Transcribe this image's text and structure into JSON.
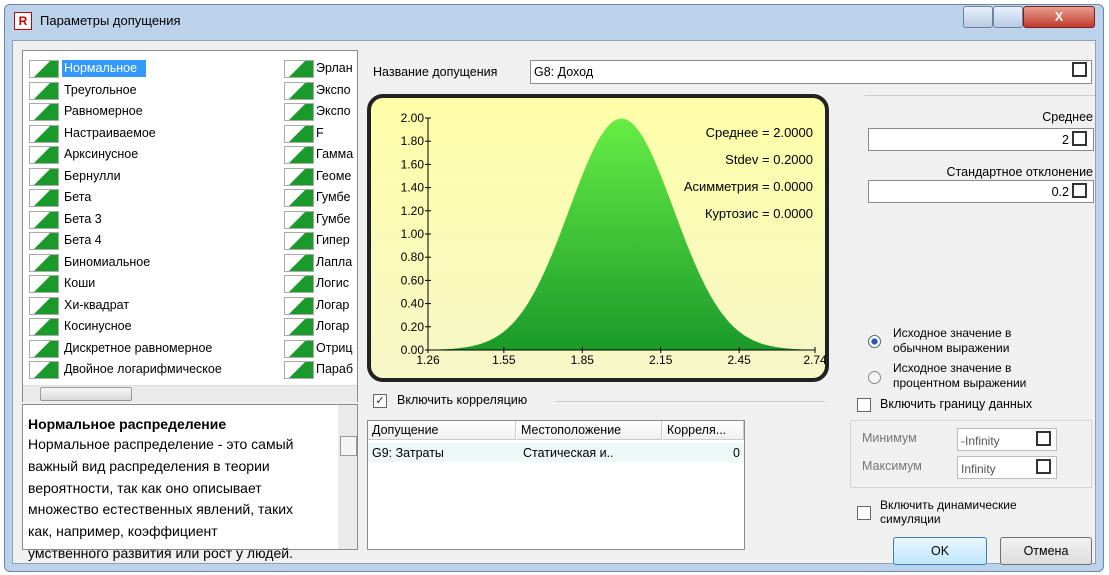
{
  "window": {
    "title": "Параметры допущения"
  },
  "distributions": {
    "col1": [
      "Нормальное",
      "Треугольное",
      "Равномерное",
      "Настраиваемое",
      "Арксинусное",
      "Бернулли",
      "Бета",
      "Бета 3",
      "Бета 4",
      "Биномиальное",
      "Коши",
      "Хи-квадрат",
      "Косинусное",
      "Дискретное равномерное",
      "Двойное логарифмическое"
    ],
    "col2": [
      "Эрлан",
      "Экспо",
      "Экспо",
      "F",
      "Гамма",
      "Геоме",
      "Гумбе",
      "Гумбе",
      "Гипер",
      "Лапла",
      "Логис",
      "Логар",
      "Логар",
      "Отриц",
      "Параб"
    ]
  },
  "description": {
    "title": "Нормальное распределение",
    "lines": [
      "Нормальное распределение - это самый",
      "важный вид распределения в теории",
      "вероятности, так как оно описывает",
      "множество естественных явлений, таких",
      "как, например, коэффициент",
      "умственного развития или рост у людей."
    ]
  },
  "assumption_name": {
    "label": "Название допущения",
    "value": "G8: Доход"
  },
  "preview": {
    "xlim": [
      1.26,
      2.74
    ],
    "ylim": [
      0,
      2
    ],
    "xticks": [
      1.26,
      1.55,
      1.85,
      2.15,
      2.45,
      2.74
    ],
    "yticks": [
      {
        "value": 0,
        "label": "0.00"
      },
      {
        "value": 0.2,
        "label": "0.20"
      },
      {
        "value": 0.4,
        "label": "0.40"
      },
      {
        "value": 0.6,
        "label": "0.60"
      },
      {
        "value": 0.8,
        "label": "0.80"
      },
      {
        "value": 1,
        "label": "1.00"
      },
      {
        "value": 1.2,
        "label": "1.20"
      },
      {
        "value": 1.4,
        "label": "1.40"
      },
      {
        "value": 1.6,
        "label": "1.60"
      },
      {
        "value": 1.8,
        "label": "1.80"
      },
      {
        "value": 2,
        "label": "2.00"
      }
    ],
    "stats": [
      "Среднее = 2.0000",
      "Stdev = 0.2000",
      "Асимметрия = 0.0000",
      "Куртозис = 0.0000"
    ]
  },
  "correlation": {
    "checkbox": "Включить корреляцию",
    "header": [
      "Допущение",
      "Местоположение",
      "Корреля..."
    ],
    "rows": [
      [
        "G9: Затраты",
        "Статическая и..",
        "0"
      ]
    ]
  },
  "parameters": {
    "mean": {
      "label": "Среднее",
      "value": "2"
    },
    "stdev": {
      "label": "Стандартное отклонение",
      "value": "0.2"
    }
  },
  "options": {
    "radio_normal": [
      "Исходное значение в",
      "обычном выражении"
    ],
    "radio_percent": [
      "Исходное значение в",
      "процентном выражении"
    ],
    "bounds_checkbox": "Включить границу данных",
    "min": {
      "label": "Минимум",
      "value": "-Infinity"
    },
    "max": {
      "label": "Максимум",
      "value": "Infinity"
    },
    "dynamic_checkbox": [
      "Включить динамические",
      "симуляции"
    ]
  },
  "buttons": {
    "ok": "OK",
    "cancel": "Отмена"
  }
}
